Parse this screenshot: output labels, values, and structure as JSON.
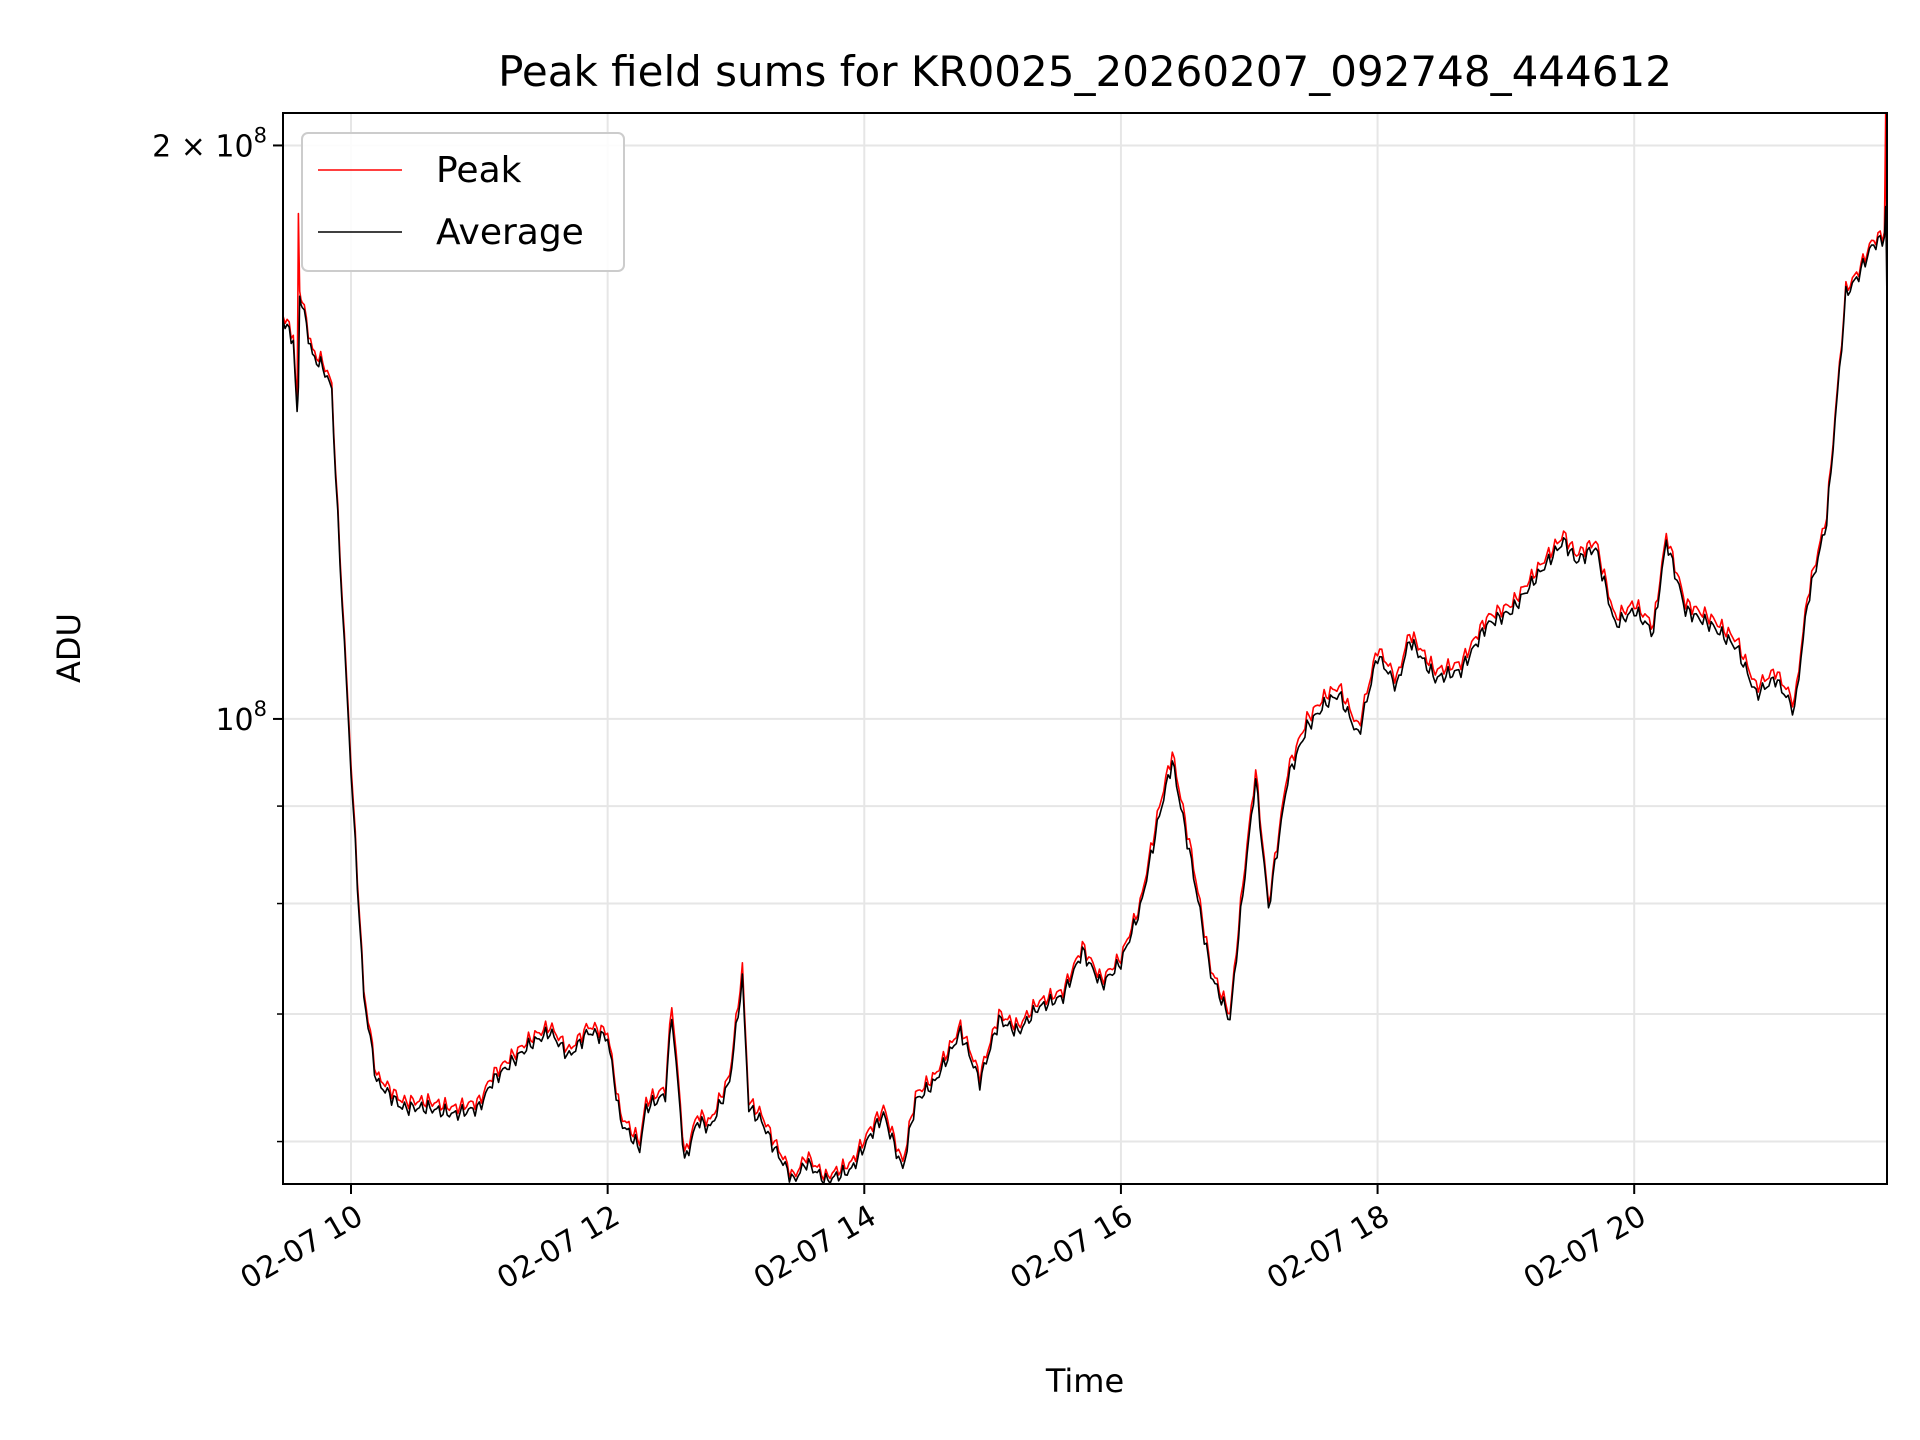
{
  "chart_data": {
    "type": "line",
    "title": "Peak field sums for KR0025_20260207_092748_444612",
    "xlabel": "Time",
    "ylabel": "ADU",
    "yscale": "log",
    "xlim_hours": [
      9.47,
      21.97
    ],
    "ylim": [
      57000000,
      208000000
    ],
    "x_ticks": [
      {
        "hour": 10,
        "label": "02-07 10"
      },
      {
        "hour": 12,
        "label": "02-07 12"
      },
      {
        "hour": 14,
        "label": "02-07 14"
      },
      {
        "hour": 16,
        "label": "02-07 16"
      },
      {
        "hour": 18,
        "label": "02-07 18"
      },
      {
        "hour": 20,
        "label": "02-07 20"
      }
    ],
    "y_major_ticks": [
      {
        "value": 100000000,
        "base": "10",
        "exp": "8"
      },
      {
        "value": 200000000,
        "base": "2 × 10",
        "exp": "8"
      }
    ],
    "y_minor_ticks": [
      60000000,
      70000000,
      80000000,
      90000000
    ],
    "grid": true,
    "legend_position": "upper left",
    "series": [
      {
        "name": "Peak",
        "color": "#ff0000",
        "x_hours": [
          9.47,
          9.55,
          9.58,
          9.59,
          9.6,
          9.62,
          9.7,
          9.78,
          9.85,
          9.88,
          10.0,
          10.1,
          10.2,
          10.4,
          10.6,
          10.8,
          11.0,
          11.1,
          11.2,
          11.4,
          11.55,
          11.7,
          11.85,
          12.0,
          12.1,
          12.25,
          12.3,
          12.45,
          12.5,
          12.6,
          12.7,
          12.8,
          12.95,
          13.05,
          13.1,
          13.2,
          13.3,
          13.45,
          13.55,
          13.7,
          13.8,
          13.9,
          14.05,
          14.15,
          14.3,
          14.4,
          14.55,
          14.75,
          14.9,
          15.05,
          15.2,
          15.35,
          15.55,
          15.7,
          15.85,
          16.0,
          16.15,
          16.3,
          16.4,
          16.55,
          16.7,
          16.85,
          16.95,
          17.05,
          17.15,
          17.3,
          17.45,
          17.6,
          17.7,
          17.85,
          18.0,
          18.15,
          18.25,
          18.45,
          18.65,
          18.85,
          19.05,
          19.25,
          19.45,
          19.55,
          19.7,
          19.85,
          20.0,
          20.15,
          20.25,
          20.4,
          20.6,
          20.8,
          20.95,
          21.1,
          21.25,
          21.35,
          21.5,
          21.65,
          21.75,
          21.85,
          21.95,
          21.96,
          21.97
        ],
        "values": [
          163000000,
          159000000,
          145000000,
          185000000,
          168000000,
          166000000,
          156000000,
          154000000,
          150000000,
          135000000,
          95000000,
          72000000,
          65000000,
          63000000,
          63000000,
          62500000,
          63000000,
          65000000,
          66000000,
          68000000,
          69000000,
          67000000,
          69000000,
          68500000,
          62000000,
          60000000,
          63000000,
          64000000,
          71000000,
          59000000,
          62000000,
          61500000,
          65000000,
          74000000,
          63000000,
          62000000,
          60000000,
          57500000,
          59000000,
          57500000,
          58000000,
          58500000,
          61000000,
          62500000,
          58500000,
          63500000,
          65000000,
          69000000,
          65000000,
          70000000,
          69000000,
          71000000,
          72000000,
          76000000,
          73000000,
          75000000,
          80000000,
          90000000,
          96000000,
          85000000,
          74000000,
          70000000,
          82000000,
          94000000,
          80000000,
          94000000,
          100000000,
          103000000,
          104000000,
          99000000,
          109000000,
          105000000,
          111000000,
          106000000,
          107000000,
          113000000,
          115000000,
          120000000,
          125000000,
          122000000,
          124000000,
          113000000,
          115000000,
          112000000,
          125000000,
          115000000,
          113000000,
          110000000,
          104000000,
          106000000,
          102000000,
          116000000,
          128000000,
          168000000,
          172000000,
          178000000,
          180000000,
          210000000,
          166000000
        ]
      },
      {
        "name": "Average",
        "color": "#000000",
        "x_hours": [
          9.47,
          9.55,
          9.58,
          9.59,
          9.6,
          9.62,
          9.7,
          9.78,
          9.85,
          9.88,
          10.0,
          10.1,
          10.2,
          10.4,
          10.6,
          10.8,
          11.0,
          11.1,
          11.2,
          11.4,
          11.55,
          11.7,
          11.85,
          12.0,
          12.1,
          12.25,
          12.3,
          12.45,
          12.5,
          12.6,
          12.7,
          12.8,
          12.95,
          13.05,
          13.1,
          13.2,
          13.3,
          13.45,
          13.55,
          13.7,
          13.8,
          13.9,
          14.05,
          14.15,
          14.3,
          14.4,
          14.55,
          14.75,
          14.9,
          15.05,
          15.2,
          15.35,
          15.55,
          15.7,
          15.85,
          16.0,
          16.15,
          16.3,
          16.4,
          16.55,
          16.7,
          16.85,
          16.95,
          17.05,
          17.15,
          17.3,
          17.45,
          17.6,
          17.7,
          17.85,
          18.0,
          18.15,
          18.25,
          18.45,
          18.65,
          18.85,
          19.05,
          19.25,
          19.45,
          19.55,
          19.7,
          19.85,
          20.0,
          20.15,
          20.25,
          20.4,
          20.6,
          20.8,
          20.95,
          21.1,
          21.25,
          21.35,
          21.5,
          21.65,
          21.75,
          21.85,
          21.95,
          21.96,
          21.97
        ],
        "values": [
          162000000,
          158000000,
          144000000,
          150000000,
          167000000,
          165000000,
          155000000,
          153000000,
          149000000,
          134000000,
          94000000,
          71500000,
          64500000,
          62500000,
          62500000,
          62000000,
          62500000,
          64500000,
          65500000,
          67500000,
          68500000,
          66500000,
          68500000,
          68000000,
          61500000,
          59500000,
          62500000,
          63500000,
          70000000,
          58500000,
          61500000,
          61000000,
          64500000,
          73000000,
          62500000,
          61500000,
          59500000,
          57200000,
          58500000,
          57200000,
          57600000,
          58000000,
          60500000,
          62000000,
          58000000,
          63000000,
          64500000,
          68500000,
          64500000,
          69500000,
          68500000,
          70500000,
          71500000,
          75500000,
          72500000,
          74500000,
          79500000,
          89000000,
          95000000,
          84000000,
          73500000,
          69500000,
          81000000,
          93000000,
          79500000,
          93000000,
          99000000,
          102000000,
          103000000,
          98000000,
          108000000,
          104000000,
          110000000,
          105000000,
          106000000,
          112000000,
          114000000,
          119000000,
          124000000,
          121000000,
          123000000,
          112000000,
          114000000,
          111000000,
          124000000,
          114000000,
          112000000,
          109000000,
          103000000,
          105000000,
          101000000,
          115000000,
          127000000,
          167000000,
          171000000,
          177000000,
          179000000,
          186000000,
          165000000
        ]
      }
    ]
  }
}
